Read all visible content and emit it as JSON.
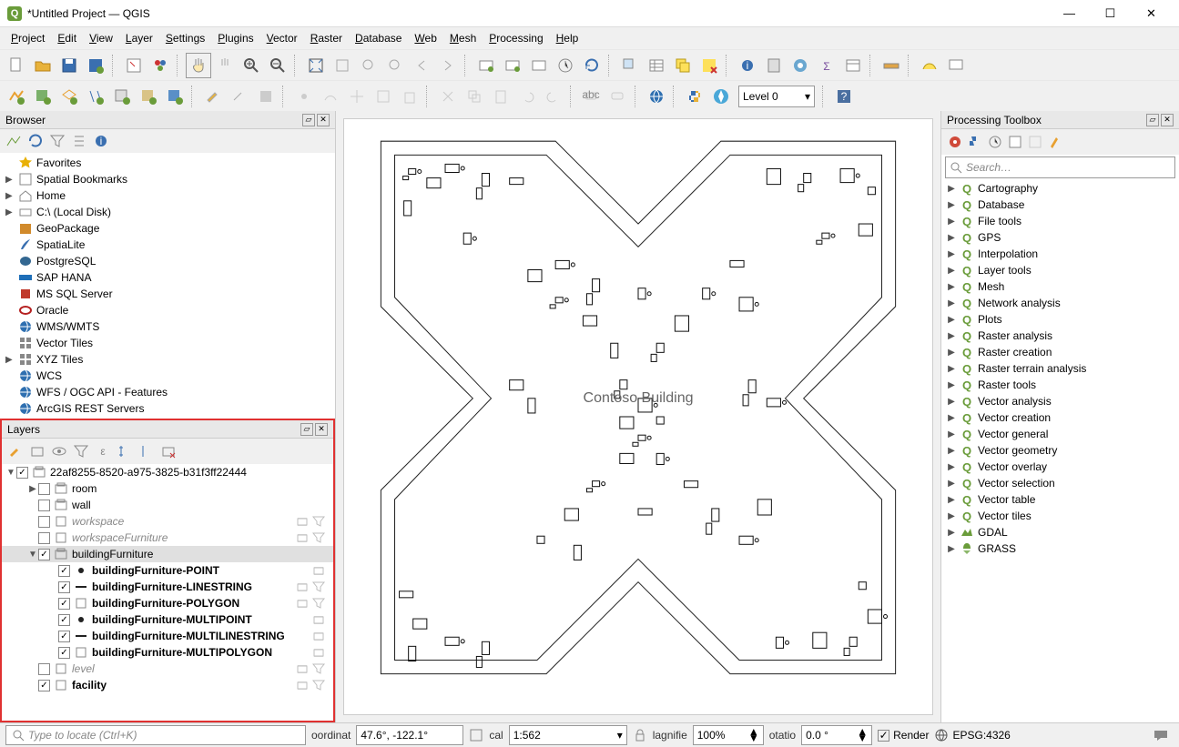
{
  "window": {
    "title": "*Untitled Project — QGIS",
    "app_icon_letter": "Q"
  },
  "menu": [
    "Project",
    "Edit",
    "View",
    "Layer",
    "Settings",
    "Plugins",
    "Vector",
    "Raster",
    "Database",
    "Web",
    "Mesh",
    "Processing",
    "Help"
  ],
  "level_combo": "Level 0",
  "browser": {
    "title": "Browser",
    "items": [
      {
        "label": "Favorites",
        "icon": "star",
        "color": "#e8b007",
        "tri": ""
      },
      {
        "label": "Spatial Bookmarks",
        "icon": "bookmark",
        "tri": "▶"
      },
      {
        "label": "Home",
        "icon": "home",
        "tri": "▶"
      },
      {
        "label": "C:\\ (Local Disk)",
        "icon": "disk",
        "tri": "▶"
      },
      {
        "label": "GeoPackage",
        "icon": "gpkg",
        "color": "#d18a2b",
        "tri": ""
      },
      {
        "label": "SpatiaLite",
        "icon": "feather",
        "tri": ""
      },
      {
        "label": "PostgreSQL",
        "icon": "pg",
        "color": "#336791",
        "tri": ""
      },
      {
        "label": "SAP HANA",
        "icon": "sap",
        "color": "#1e6fb8",
        "tri": ""
      },
      {
        "label": "MS SQL Server",
        "icon": "mssql",
        "color": "#c0392b",
        "tri": ""
      },
      {
        "label": "Oracle",
        "icon": "oracle",
        "color": "#b52020",
        "tri": ""
      },
      {
        "label": "WMS/WMTS",
        "icon": "globe",
        "color": "#2e6fb0",
        "tri": ""
      },
      {
        "label": "Vector Tiles",
        "icon": "vtiles",
        "tri": ""
      },
      {
        "label": "XYZ Tiles",
        "icon": "xyz",
        "tri": "▶"
      },
      {
        "label": "WCS",
        "icon": "globe",
        "color": "#2e6fb0",
        "tri": ""
      },
      {
        "label": "WFS / OGC API - Features",
        "icon": "globe",
        "color": "#2e6fb0",
        "tri": ""
      },
      {
        "label": "ArcGIS REST Servers",
        "icon": "globe",
        "color": "#2e6fb0",
        "tri": ""
      }
    ]
  },
  "layers": {
    "title": "Layers",
    "root": {
      "label": "22af8255-8520-a975-3825-b31f3ff22444",
      "checked": true
    },
    "items": [
      {
        "indent": 1,
        "tri": "▶",
        "checked": false,
        "icon": "grp",
        "label": "room",
        "bold": false
      },
      {
        "indent": 1,
        "tri": "",
        "checked": false,
        "icon": "grp",
        "label": "wall",
        "bold": false
      },
      {
        "indent": 1,
        "tri": "",
        "checked": false,
        "icon": "poly",
        "label": "workspace",
        "italic": true,
        "ricons": 2
      },
      {
        "indent": 1,
        "tri": "",
        "checked": false,
        "icon": "poly",
        "label": "workspaceFurniture",
        "italic": true,
        "ricons": 2
      },
      {
        "indent": 1,
        "tri": "▼",
        "checked": true,
        "icon": "grp",
        "label": "buildingFurniture",
        "bold": false,
        "sel": true
      },
      {
        "indent": 2,
        "tri": "",
        "checked": true,
        "icon": "pt",
        "label": "buildingFurniture-POINT",
        "bold": true,
        "ricons": 1
      },
      {
        "indent": 2,
        "tri": "",
        "checked": true,
        "icon": "ln",
        "label": "buildingFurniture-LINESTRING",
        "bold": true,
        "ricons": 2
      },
      {
        "indent": 2,
        "tri": "",
        "checked": true,
        "icon": "poly",
        "label": "buildingFurniture-POLYGON",
        "bold": true,
        "ricons": 2
      },
      {
        "indent": 2,
        "tri": "",
        "checked": true,
        "icon": "pt",
        "label": "buildingFurniture-MULTIPOINT",
        "bold": true,
        "ricons": 1
      },
      {
        "indent": 2,
        "tri": "",
        "checked": true,
        "icon": "ln",
        "label": "buildingFurniture-MULTILINESTRING",
        "bold": true,
        "ricons": 1
      },
      {
        "indent": 2,
        "tri": "",
        "checked": true,
        "icon": "poly",
        "label": "buildingFurniture-MULTIPOLYGON",
        "bold": true,
        "ricons": 1
      },
      {
        "indent": 1,
        "tri": "",
        "checked": false,
        "icon": "poly",
        "label": "level",
        "italic": true,
        "ricons": 2
      },
      {
        "indent": 1,
        "tri": "",
        "checked": true,
        "icon": "poly",
        "label": "facility",
        "bold": true,
        "ricons": 2
      }
    ]
  },
  "processing": {
    "title": "Processing Toolbox",
    "search_placeholder": "Search…",
    "items": [
      "Cartography",
      "Database",
      "File tools",
      "GPS",
      "Interpolation",
      "Layer tools",
      "Mesh",
      "Network analysis",
      "Plots",
      "Raster analysis",
      "Raster creation",
      "Raster terrain analysis",
      "Raster tools",
      "Vector analysis",
      "Vector creation",
      "Vector general",
      "Vector geometry",
      "Vector overlay",
      "Vector selection",
      "Vector table",
      "Vector tiles"
    ],
    "providers": [
      {
        "label": "GDAL",
        "icon": "gdal"
      },
      {
        "label": "GRASS",
        "icon": "grass"
      }
    ]
  },
  "status": {
    "locate_placeholder": "Type to locate (Ctrl+K)",
    "coord_label": "oordinat",
    "coord": "47.6°, -122.1°",
    "scale_label": "cal",
    "scale": "1:562",
    "mag_label": "lagnifie",
    "mag": "100%",
    "rot_label": "otatio",
    "rot": "0.0 °",
    "render": "Render",
    "crs": "EPSG:4326"
  },
  "map_label": "Contoso Building",
  "colors": {
    "highlight": "#e03131",
    "q": "#6a9c3a"
  }
}
